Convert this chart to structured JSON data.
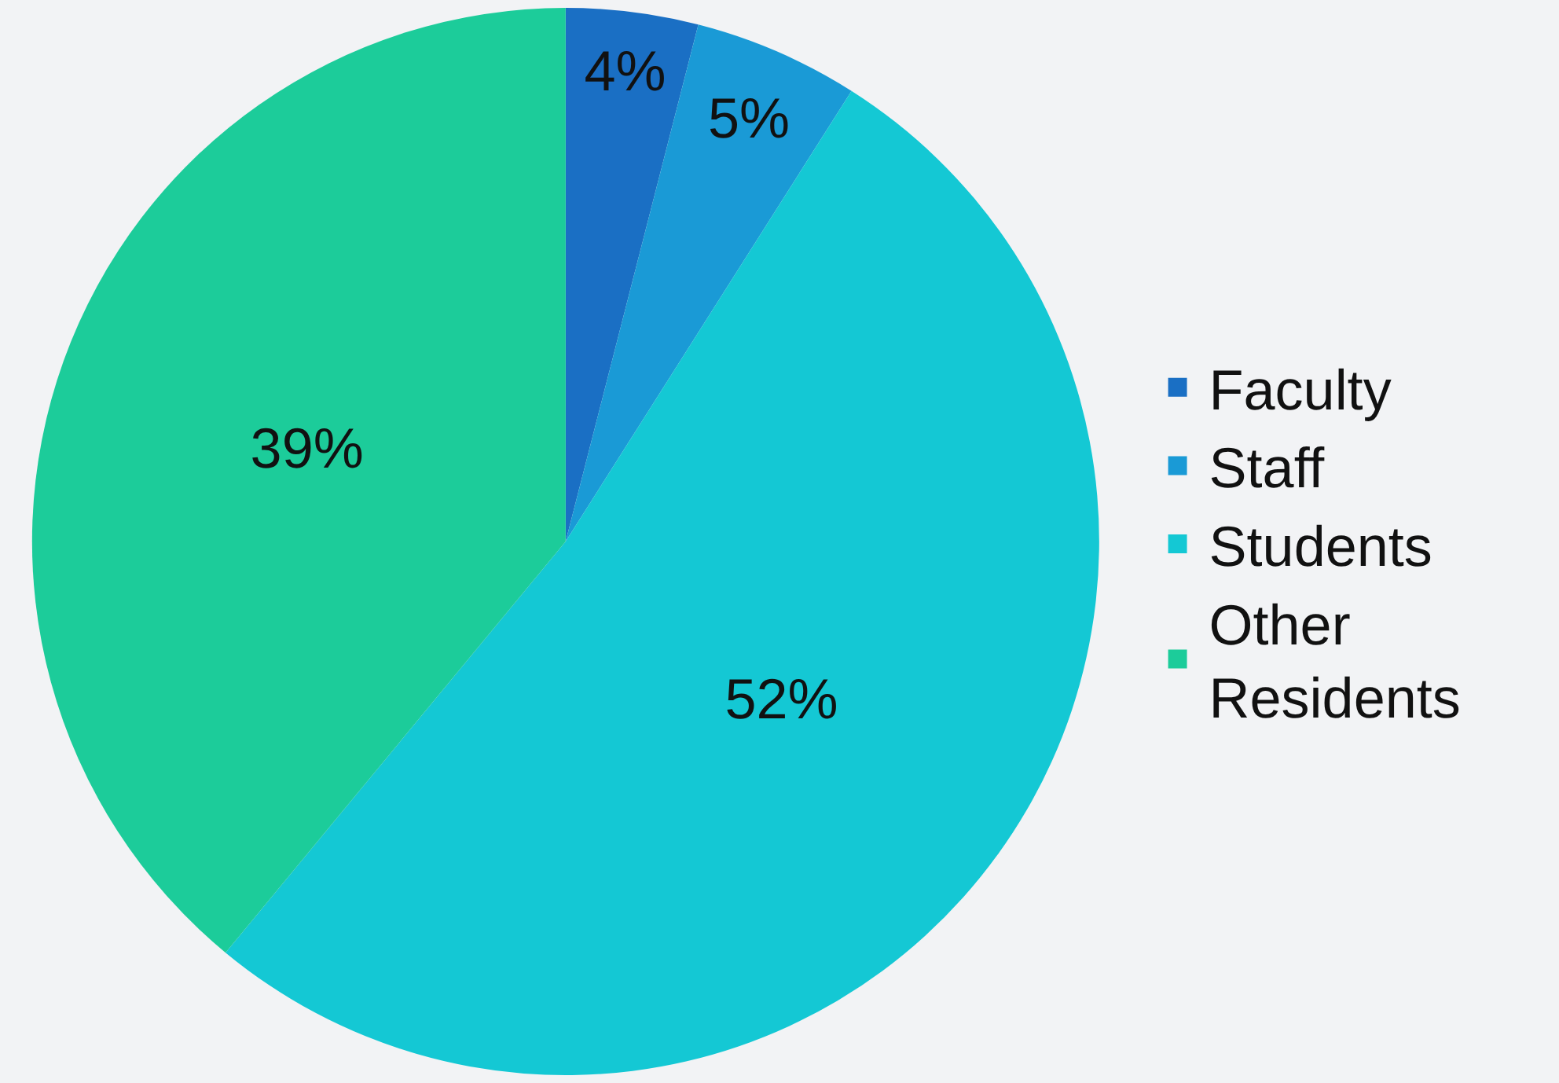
{
  "chart_data": {
    "type": "pie",
    "categories": [
      "Faculty",
      "Staff",
      "Students",
      "Other Residents"
    ],
    "values": [
      4,
      5,
      52,
      39
    ],
    "colors": [
      "#1a6fc4",
      "#1a9ad6",
      "#14c8d4",
      "#1ccc9a"
    ],
    "value_labels": [
      "4%",
      "5%",
      "52%",
      "39%"
    ],
    "legend": "right"
  }
}
